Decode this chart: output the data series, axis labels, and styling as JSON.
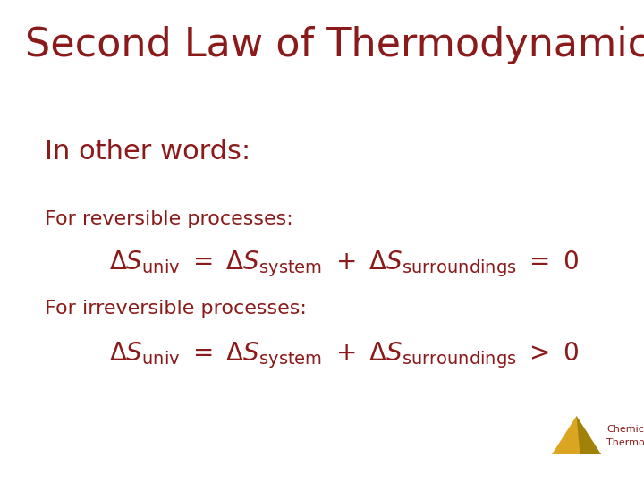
{
  "title": "Second Law of Thermodynamics",
  "title_color": "#8B1A1A",
  "title_fontsize": 32,
  "bg_color": "#FFFFFF",
  "text_color": "#8B1A1A",
  "subtitle": "In other words:",
  "subtitle_fontsize": 22,
  "rev_label": "For reversible processes:",
  "rev_label_fontsize": 16,
  "irrev_label": "For irreversible processes:",
  "irrev_label_fontsize": 16,
  "eq_fontsize": 20,
  "logo_text1": "Chemical",
  "logo_text2": "Thermodynamics",
  "logo_text_fontsize": 8,
  "logo_text_color": "#8B1A1A",
  "triangle_color": "#DAA520",
  "triangle_dark_color": "#A0820A"
}
